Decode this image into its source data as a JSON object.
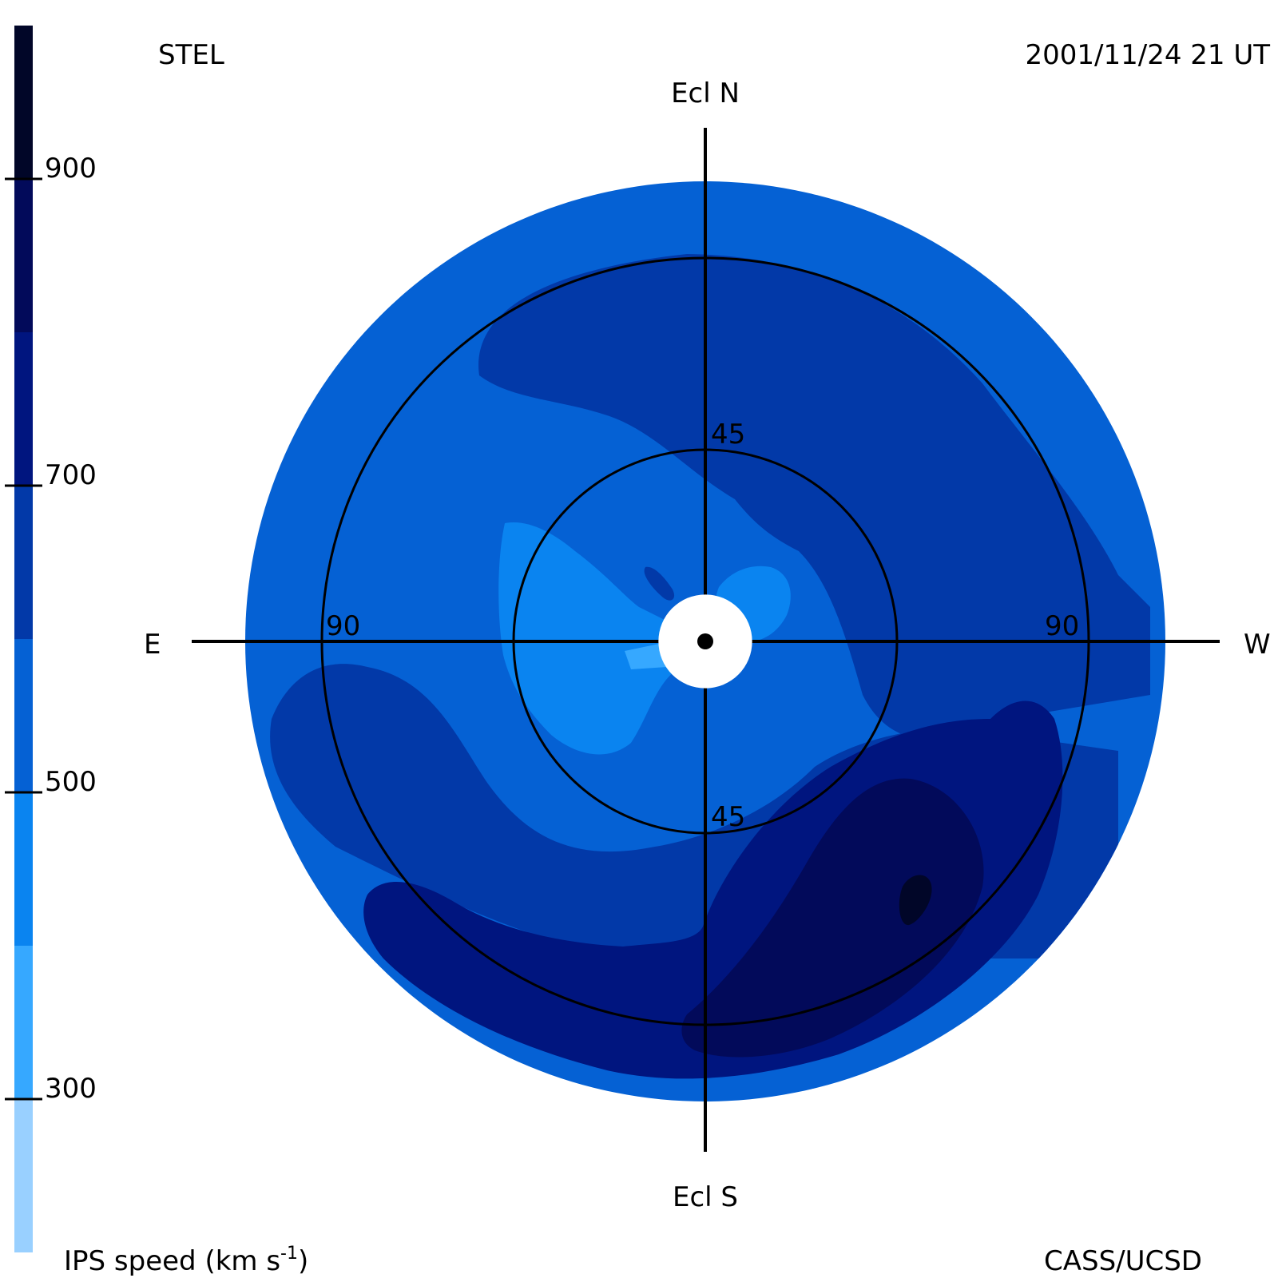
{
  "header": {
    "left_text": "STEL",
    "right_text": "2001/11/24 21 UT"
  },
  "footer": {
    "left_text": "IPS speed (km s",
    "left_superscript": "-1",
    "left_suffix": ")",
    "right_text": "CASS/UCSD"
  },
  "directions": {
    "north": "Ecl N",
    "south": "Ecl S",
    "east": "E",
    "west": "W"
  },
  "chart_data": {
    "type": "heatmap",
    "projection": "polar sky map (fisheye) centered on the Sun",
    "rings": [
      {
        "elongation_deg": 45,
        "labels": [
          "45",
          "45"
        ]
      },
      {
        "elongation_deg": 90,
        "labels": [
          "90",
          "90"
        ]
      }
    ],
    "map_outer_elongation_deg": 108,
    "sun_occulter_elongation_deg": 11,
    "colorbar": {
      "label": "IPS speed (km s-1)",
      "range": [
        200,
        1000
      ],
      "ticks": [
        {
          "value": 300,
          "label": "300"
        },
        {
          "value": 500,
          "label": "500"
        },
        {
          "value": 700,
          "label": "700"
        },
        {
          "value": 900,
          "label": "900"
        }
      ],
      "bands": [
        {
          "min": 200,
          "max": 300,
          "color": "#99d0ff"
        },
        {
          "min": 300,
          "max": 400,
          "color": "#36a8ff"
        },
        {
          "min": 400,
          "max": 500,
          "color": "#0a84f0"
        },
        {
          "min": 500,
          "max": 600,
          "color": "#0561d4"
        },
        {
          "min": 600,
          "max": 700,
          "color": "#0239a8"
        },
        {
          "min": 700,
          "max": 800,
          "color": "#00157f"
        },
        {
          "min": 800,
          "max": 900,
          "color": "#020a5a"
        },
        {
          "min": 900,
          "max": 1000,
          "color": "#010628"
        }
      ]
    },
    "speed_regions": [
      {
        "level": 500,
        "color": "#0561d4",
        "region": "outer ring and inner disk background"
      },
      {
        "level": 400,
        "color": "#0a84f0",
        "region": "east of Sun inside 45 deg ring"
      },
      {
        "level": 400,
        "color": "#0a84f0",
        "region": "northwest of Sun near center"
      },
      {
        "level": 300,
        "color": "#36a8ff",
        "region": "small patch just southeast of Sun"
      },
      {
        "level": 600,
        "color": "#0239a8",
        "region": "north band and west side"
      },
      {
        "level": 600,
        "color": "#0239a8",
        "region": "southeast band"
      },
      {
        "level": 600,
        "color": "#0239a8",
        "region": "small spot northwest of Sun"
      },
      {
        "level": 700,
        "color": "#00157f",
        "region": "south and southwest arc"
      },
      {
        "level": 800,
        "color": "#020a5a",
        "region": "southwest lobe"
      },
      {
        "level": 900,
        "color": "#010628",
        "region": "small core in southwest lobe"
      }
    ]
  }
}
